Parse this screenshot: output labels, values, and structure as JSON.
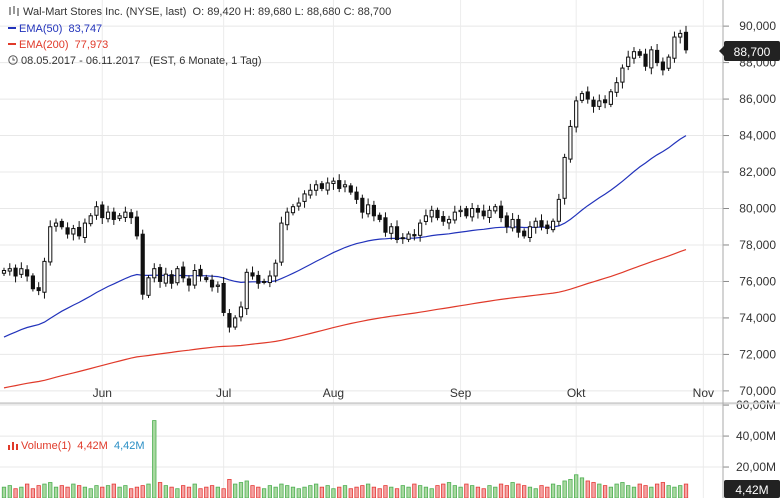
{
  "header": {
    "title": "Wal-Mart Stores Inc. (NYSE, last)",
    "ohlc": "O: 89,420  H: 89,680  L: 88,680  C: 88,700",
    "ema50_label": "EMA(50)",
    "ema50_value": "83,747",
    "ema200_label": "EMA(200)",
    "ema200_value": "77,973",
    "range": "08.05.2017 - 06.11.2017",
    "range_note": "(EST, 6 Monate, 1 Tag)",
    "current_price_badge": "88,700"
  },
  "volume_header": {
    "label": "Volume(1)",
    "value_red": "4,42M",
    "value_blue": "4,42M",
    "current_badge": "4,42M"
  },
  "colors": {
    "up": "#4caf50",
    "down": "#e53935",
    "ema50": "#2233bb",
    "ema200": "#e03a2a",
    "candle": "#111111",
    "vol_up_fill": "#a8d8a0",
    "vol_down_fill": "#f4a3a3"
  },
  "chart_data": [
    {
      "type": "candlestick",
      "title": "Wal-Mart Stores Inc. (NYSE, last)",
      "ylim": [
        69.5,
        90.5
      ],
      "y_ticks": [
        70000,
        72000,
        74000,
        76000,
        78000,
        80000,
        82000,
        84000,
        86000,
        88000,
        90000
      ],
      "y_tick_labels": [
        "70,000",
        "72,000",
        "74,000",
        "76,000",
        "78,000",
        "80,000",
        "82,000",
        "84,000",
        "86,000",
        "88,000",
        "90,000"
      ],
      "x_ticks": [
        {
          "label": "Jun",
          "index": 17
        },
        {
          "label": "Jul",
          "index": 38
        },
        {
          "label": "Aug",
          "index": 57
        },
        {
          "label": "Sep",
          "index": 79
        },
        {
          "label": "Okt",
          "index": 99
        },
        {
          "label": "Nov",
          "index": 121
        }
      ],
      "close": [
        76.6,
        76.7,
        76.3,
        76.7,
        76.3,
        75.6,
        75.5,
        77.1,
        79.0,
        79.2,
        79.0,
        78.6,
        78.9,
        78.5,
        79.2,
        79.6,
        80.1,
        79.5,
        79.8,
        79.4,
        79.6,
        79.8,
        79.5,
        78.5,
        75.3,
        76.2,
        76.7,
        76.0,
        76.4,
        75.9,
        76.7,
        76.2,
        75.8,
        76.6,
        76.3,
        76.1,
        75.7,
        75.8,
        74.3,
        73.5,
        74.0,
        74.6,
        76.5,
        76.3,
        75.9,
        76.0,
        76.3,
        77.0,
        79.2,
        79.8,
        80.1,
        80.3,
        80.8,
        81.0,
        81.3,
        81.1,
        81.4,
        81.5,
        81.1,
        81.3,
        80.9,
        80.5,
        79.8,
        80.2,
        79.6,
        79.4,
        78.7,
        79.0,
        78.3,
        78.4,
        78.6,
        78.5,
        79.2,
        79.6,
        79.9,
        79.5,
        79.3,
        79.4,
        79.8,
        79.9,
        79.6,
        80.0,
        79.8,
        79.6,
        79.9,
        80.1,
        79.5,
        79.0,
        79.4,
        78.7,
        78.5,
        79.0,
        79.3,
        79.0,
        78.9,
        79.3,
        80.5,
        82.8,
        84.5,
        85.9,
        86.3,
        86.0,
        85.6,
        85.9,
        85.8,
        86.4,
        86.9,
        87.7,
        88.3,
        88.6,
        88.4,
        87.8,
        88.7,
        88.0,
        87.6,
        88.3,
        89.4,
        89.6,
        88.7
      ],
      "series": [
        {
          "name": "EMA(50)",
          "final_value": 83.747
        },
        {
          "name": "EMA(200)",
          "final_value": 77.973
        }
      ]
    },
    {
      "type": "bar",
      "title": "Volume(1)",
      "ylim": [
        0,
        62
      ],
      "y_ticks": [
        20,
        40,
        60
      ],
      "y_tick_labels": [
        "20,00M",
        "40,00M",
        "60,00M"
      ],
      "unit": "M",
      "values": [
        7,
        8,
        6,
        7,
        9,
        6,
        8,
        9,
        10,
        7,
        8,
        7,
        9,
        8,
        7,
        6,
        8,
        7,
        8,
        9,
        7,
        8,
        6,
        7,
        8,
        9,
        50,
        10,
        8,
        7,
        6,
        8,
        7,
        9,
        6,
        7,
        8,
        7,
        6,
        12,
        9,
        10,
        11,
        8,
        7,
        6,
        8,
        7,
        9,
        8,
        7,
        6,
        7,
        8,
        9,
        7,
        8,
        6,
        7,
        8,
        6,
        7,
        8,
        9,
        7,
        6,
        8,
        7,
        6,
        8,
        7,
        9,
        8,
        7,
        6,
        8,
        9,
        10,
        8,
        7,
        9,
        8,
        7,
        6,
        8,
        7,
        9,
        8,
        10,
        9,
        8,
        7,
        6,
        8,
        7,
        9,
        8,
        11,
        12,
        15,
        13,
        11,
        10,
        9,
        8,
        7,
        9,
        10,
        8,
        7,
        9,
        8,
        7,
        9,
        10,
        8,
        7,
        8,
        9,
        7,
        4.42
      ]
    }
  ]
}
